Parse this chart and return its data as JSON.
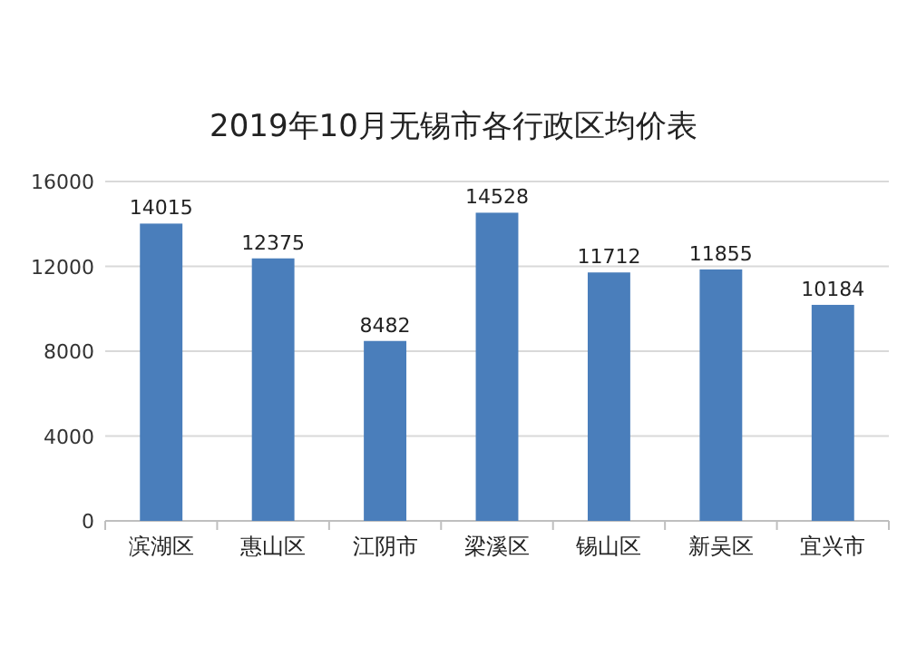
{
  "chart_data": {
    "type": "bar",
    "title": "2019年10月无锡市各行政区均价表",
    "categories": [
      "滨湖区",
      "惠山区",
      "江阴市",
      "梁溪区",
      "锡山区",
      "新吴区",
      "宜兴市"
    ],
    "values": [
      14015,
      12375,
      8482,
      14528,
      11712,
      11855,
      10184
    ],
    "color": "#4a7ebb",
    "ylim": [
      0,
      16000
    ],
    "yticks": [
      0,
      4000,
      8000,
      12000,
      16000
    ],
    "grid": "y",
    "data_labels": true
  }
}
